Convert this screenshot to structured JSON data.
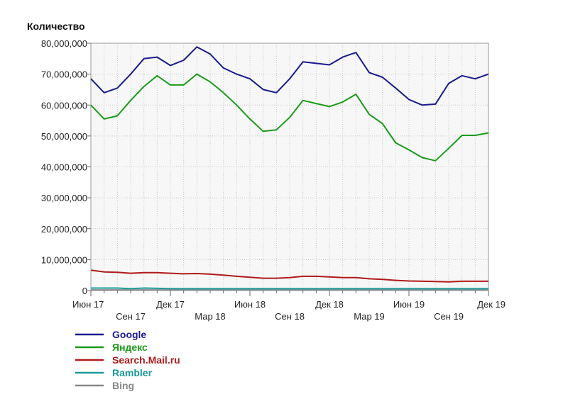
{
  "chart_data": {
    "type": "line",
    "ylabel": "Количество",
    "ylim": [
      0,
      80000000
    ],
    "yticks": [
      0,
      10000000,
      20000000,
      30000000,
      40000000,
      50000000,
      60000000,
      70000000,
      80000000
    ],
    "ytick_labels": [
      "0",
      "10,000,000",
      "20,000,000",
      "30,000,000",
      "40,000,000",
      "50,000,000",
      "60,000,000",
      "70,000,000",
      "80,000,000"
    ],
    "grid": true,
    "legend_position": "bottom-left",
    "x": [
      "2017-06",
      "2017-07",
      "2017-08",
      "2017-09",
      "2017-10",
      "2017-11",
      "2017-12",
      "2018-01",
      "2018-02",
      "2018-03",
      "2018-04",
      "2018-05",
      "2018-06",
      "2018-07",
      "2018-08",
      "2018-09",
      "2018-10",
      "2018-11",
      "2018-12",
      "2019-01",
      "2019-02",
      "2019-03",
      "2019-04",
      "2019-05",
      "2019-06",
      "2019-07",
      "2019-08",
      "2019-09",
      "2019-10",
      "2019-11",
      "2019-12"
    ],
    "xtick_labels": [
      {
        "label": "Июн 17",
        "index": 0,
        "row": 0
      },
      {
        "label": "Сен 17",
        "index": 3,
        "row": 1
      },
      {
        "label": "Дек 17",
        "index": 6,
        "row": 0
      },
      {
        "label": "Мар 18",
        "index": 9,
        "row": 1
      },
      {
        "label": "Июн 18",
        "index": 12,
        "row": 0
      },
      {
        "label": "Сен 18",
        "index": 15,
        "row": 1
      },
      {
        "label": "Дек 18",
        "index": 18,
        "row": 0
      },
      {
        "label": "Мар 19",
        "index": 21,
        "row": 1
      },
      {
        "label": "Июн 19",
        "index": 24,
        "row": 0
      },
      {
        "label": "Сен 19",
        "index": 27,
        "row": 1
      },
      {
        "label": "Дек 19",
        "index": 30,
        "row": 0
      }
    ],
    "series": [
      {
        "name": "Google",
        "color": "#1a1a8c",
        "values": [
          68500000,
          64000000,
          65500000,
          70000000,
          75000000,
          75500000,
          72800000,
          74500000,
          78800000,
          76500000,
          72000000,
          70000000,
          68500000,
          65000000,
          64000000,
          68500000,
          74000000,
          73500000,
          73000000,
          75500000,
          77000000,
          70500000,
          69000000,
          65500000,
          61800000,
          60000000,
          60300000,
          67000000,
          69500000,
          68500000,
          70000000
        ]
      },
      {
        "name": "Яндекс",
        "color": "#1a9a1a",
        "values": [
          60000000,
          55500000,
          56500000,
          61500000,
          66000000,
          69500000,
          66500000,
          66500000,
          70000000,
          67500000,
          64000000,
          60000000,
          55500000,
          51500000,
          52000000,
          56000000,
          61500000,
          60500000,
          59500000,
          61000000,
          63500000,
          57000000,
          54000000,
          47800000,
          45500000,
          43000000,
          42000000,
          46000000,
          50200000,
          50200000,
          51000000
        ]
      },
      {
        "name": "Search.Mail.ru",
        "color": "#b01a1a",
        "values": [
          6600000,
          6000000,
          5900000,
          5600000,
          5800000,
          5800000,
          5600000,
          5400000,
          5500000,
          5300000,
          5000000,
          4600000,
          4300000,
          4000000,
          4000000,
          4200000,
          4600000,
          4600000,
          4400000,
          4200000,
          4200000,
          3800000,
          3600000,
          3300000,
          3100000,
          3000000,
          2900000,
          2800000,
          3000000,
          3000000,
          3000000
        ]
      },
      {
        "name": "Rambler",
        "color": "#1a9a9a",
        "values": [
          800000,
          800000,
          800000,
          600000,
          800000,
          700000,
          600000,
          600000,
          600000,
          600000,
          600000,
          600000,
          600000,
          600000,
          600000,
          600000,
          600000,
          600000,
          600000,
          600000,
          600000,
          600000,
          600000,
          600000,
          600000,
          600000,
          600000,
          600000,
          600000,
          600000,
          600000
        ]
      },
      {
        "name": "Bing",
        "color": "#888888",
        "values": [
          200000,
          200000,
          200000,
          200000,
          200000,
          200000,
          200000,
          200000,
          200000,
          200000,
          200000,
          200000,
          200000,
          200000,
          200000,
          200000,
          200000,
          200000,
          200000,
          200000,
          200000,
          200000,
          200000,
          200000,
          200000,
          200000,
          200000,
          200000,
          200000,
          200000,
          200000
        ]
      }
    ]
  }
}
